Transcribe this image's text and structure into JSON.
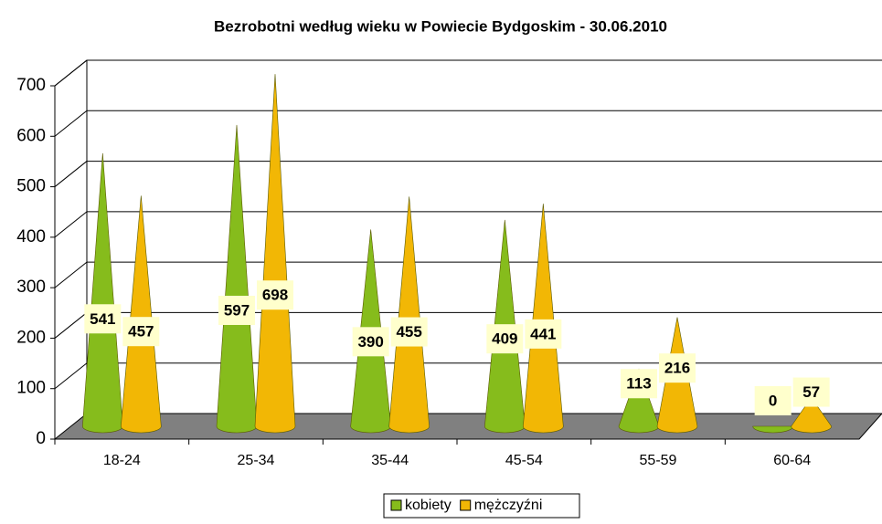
{
  "chart_data": {
    "type": "cone",
    "title": "Bezrobotni według wieku w Powiecie Bydgoskim - 30.06.2010",
    "categories": [
      "18-24",
      "25-34",
      "35-44",
      "45-54",
      "55-59",
      "60-64"
    ],
    "series": [
      {
        "name": "kobiety",
        "color": "#86bc1c",
        "values": [
          541,
          597,
          390,
          409,
          113,
          0
        ]
      },
      {
        "name": "mężczyźni",
        "color": "#f2b705",
        "values": [
          457,
          698,
          455,
          441,
          216,
          57
        ]
      }
    ],
    "ylim": [
      0,
      700
    ],
    "yticks": [
      0,
      100,
      200,
      300,
      400,
      500,
      600,
      700
    ],
    "grid": true,
    "legend": "bottom"
  }
}
